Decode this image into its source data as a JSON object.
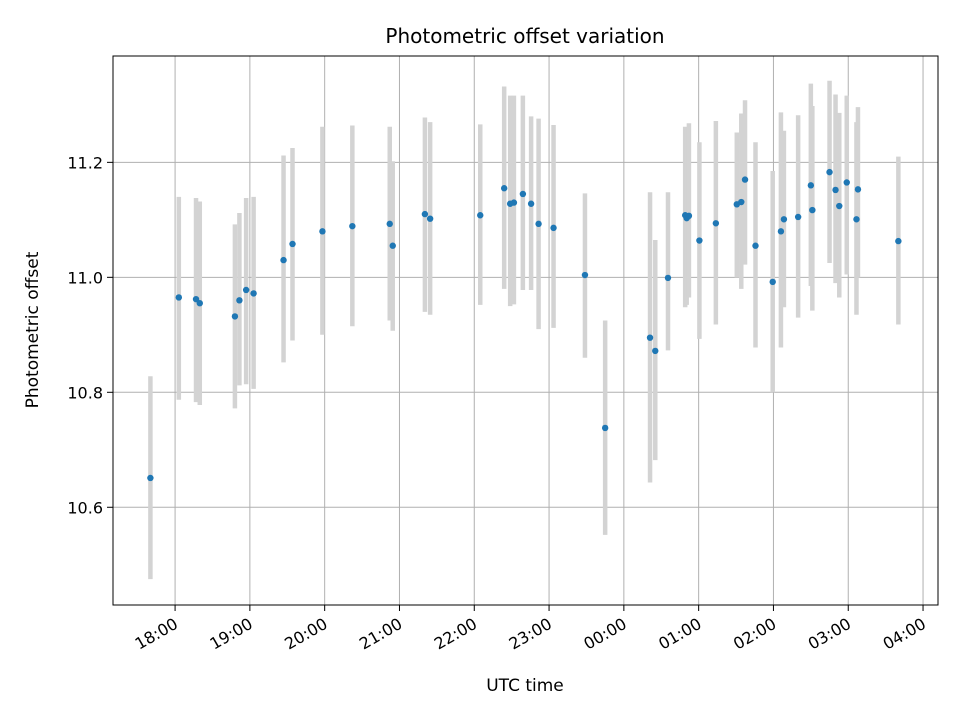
{
  "chart_data": {
    "type": "scatter",
    "title": "Photometric offset variation",
    "xlabel": "UTC time",
    "ylabel": "Photometric offset",
    "grid": true,
    "x_ticks": [
      "18:00",
      "19:00",
      "20:00",
      "21:00",
      "22:00",
      "23:00",
      "00:00",
      "01:00",
      "02:00",
      "03:00",
      "04:00"
    ],
    "y_ticks": [
      10.6,
      10.8,
      11.0,
      11.2
    ],
    "xlim_hours": [
      17.17,
      28.2
    ],
    "ylim": [
      10.43,
      11.385
    ],
    "colors": {
      "point": "#1f77b4",
      "errorbar": "#d3d3d3",
      "grid": "#b0b0b0"
    },
    "series": [
      {
        "x_hours": [
          17.67,
          18.05,
          18.28,
          18.33,
          18.8,
          18.86,
          18.95,
          19.05,
          19.45,
          19.57,
          19.97,
          20.37,
          20.87,
          20.91,
          21.34,
          21.41,
          22.08,
          22.4,
          22.48,
          22.53,
          22.65,
          22.76,
          22.86,
          23.06,
          23.48,
          23.75,
          24.35,
          24.42,
          24.59,
          24.82,
          24.84,
          24.87,
          25.01,
          25.23,
          25.51,
          25.57,
          25.62,
          25.76,
          25.99,
          26.1,
          26.14,
          26.33,
          26.5,
          26.52,
          26.75,
          26.83,
          26.88,
          26.98,
          27.11,
          27.13,
          27.67
        ],
        "y": [
          10.651,
          10.965,
          10.962,
          10.955,
          10.932,
          10.96,
          10.978,
          10.972,
          11.03,
          11.058,
          11.08,
          11.089,
          11.093,
          11.055,
          11.11,
          11.102,
          11.108,
          11.155,
          11.128,
          11.13,
          11.145,
          11.128,
          11.093,
          11.086,
          11.004,
          10.738,
          10.895,
          10.872,
          10.999,
          11.108,
          11.103,
          11.107,
          11.064,
          11.094,
          11.127,
          11.131,
          11.17,
          11.055,
          10.992,
          11.08,
          11.101,
          11.105,
          11.16,
          11.117,
          11.183,
          11.152,
          11.124,
          11.165,
          11.101,
          11.153,
          11.063
        ],
        "err_low": [
          10.475,
          10.787,
          10.783,
          10.778,
          10.772,
          10.812,
          10.814,
          10.806,
          10.852,
          10.89,
          10.9,
          10.915,
          10.925,
          10.907,
          10.94,
          10.935,
          10.952,
          10.98,
          10.95,
          10.953,
          10.978,
          10.978,
          10.91,
          10.912,
          10.86,
          10.552,
          10.643,
          10.682,
          10.873,
          10.948,
          10.952,
          10.965,
          10.893,
          10.918,
          11.0,
          10.98,
          11.022,
          10.878,
          10.8,
          10.878,
          10.948,
          10.93,
          10.985,
          10.942,
          11.025,
          10.99,
          10.965,
          11.005,
          10.935,
          11.0,
          10.918
        ],
        "err_high": [
          10.828,
          11.14,
          11.138,
          11.132,
          11.092,
          11.112,
          11.138,
          11.14,
          11.212,
          11.225,
          11.262,
          11.264,
          11.262,
          11.202,
          11.278,
          11.27,
          11.266,
          11.332,
          11.316,
          11.316,
          11.316,
          11.28,
          11.276,
          11.265,
          11.146,
          10.925,
          11.148,
          11.065,
          11.148,
          11.262,
          11.258,
          11.268,
          11.235,
          11.272,
          11.252,
          11.285,
          11.308,
          11.235,
          11.185,
          11.287,
          11.255,
          11.282,
          11.337,
          11.298,
          11.342,
          11.318,
          11.286,
          11.316,
          11.27,
          11.296,
          11.21
        ]
      }
    ]
  }
}
